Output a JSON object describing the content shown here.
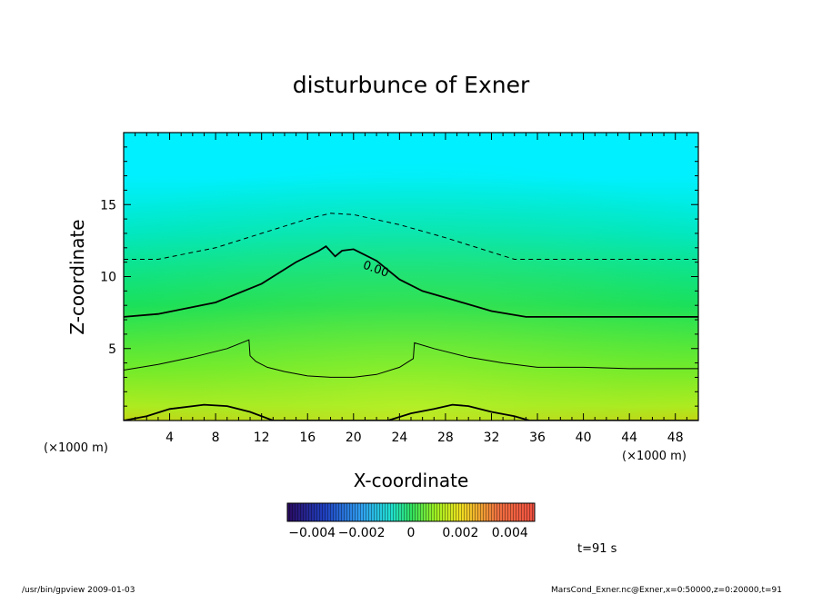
{
  "chart_data": {
    "type": "heatmap",
    "title": "disturbunce of Exner",
    "xlabel": "X-coordinate",
    "ylabel": "Z-coordinate",
    "x_unit": "(×1000 m)",
    "y_unit": "(×1000 m)",
    "xlim": [
      0,
      50
    ],
    "ylim": [
      0,
      20
    ],
    "x_ticks": [
      4,
      8,
      12,
      16,
      20,
      24,
      28,
      32,
      36,
      40,
      44,
      48
    ],
    "x_tick_labels": [
      "4",
      "8",
      "12",
      "16",
      "20",
      "24",
      "28",
      "32",
      "36",
      "40",
      "44",
      "48"
    ],
    "y_ticks": [
      5,
      10,
      15
    ],
    "y_tick_labels": [
      "5",
      "10",
      "15"
    ],
    "colorbar": {
      "range": [
        -0.005,
        0.005
      ],
      "tick_values": [
        -0.004,
        -0.002,
        0,
        0.002,
        0.004
      ],
      "tick_labels": [
        "−0.004",
        "−0.002",
        "0",
        "0.002",
        "0.004"
      ]
    },
    "contours": [
      {
        "level": "upper-dashed",
        "style": "dashed",
        "points": [
          [
            0,
            11.2
          ],
          [
            3,
            11.2
          ],
          [
            8,
            12
          ],
          [
            12,
            13
          ],
          [
            16,
            14
          ],
          [
            18,
            14.4
          ],
          [
            20,
            14.3
          ],
          [
            24,
            13.6
          ],
          [
            28,
            12.7
          ],
          [
            32,
            11.7
          ],
          [
            34,
            11.2
          ],
          [
            50,
            11.2
          ]
        ]
      },
      {
        "level": "0.00",
        "label": "0.00",
        "style": "thick",
        "points": [
          [
            0,
            7.2
          ],
          [
            3,
            7.4
          ],
          [
            8,
            8.2
          ],
          [
            12,
            9.5
          ],
          [
            15,
            11
          ],
          [
            17,
            11.8
          ],
          [
            17.6,
            12.1
          ],
          [
            18.4,
            11.4
          ],
          [
            19,
            11.8
          ],
          [
            20,
            11.9
          ],
          [
            22,
            11.1
          ],
          [
            24,
            9.8
          ],
          [
            26,
            9
          ],
          [
            29,
            8.3
          ],
          [
            32,
            7.6
          ],
          [
            35,
            7.2
          ],
          [
            50,
            7.2
          ]
        ]
      },
      {
        "level": "mid",
        "style": "thin",
        "points": [
          [
            0,
            3.5
          ],
          [
            3,
            3.9
          ],
          [
            6,
            4.4
          ],
          [
            9,
            5
          ],
          [
            10.9,
            5.6
          ],
          [
            11,
            4.5
          ],
          [
            11.5,
            4.1
          ],
          [
            12.5,
            3.7
          ],
          [
            14,
            3.4
          ],
          [
            16,
            3.1
          ],
          [
            18,
            3.0
          ],
          [
            20,
            3.0
          ],
          [
            22,
            3.2
          ],
          [
            24,
            3.7
          ],
          [
            25.2,
            4.3
          ],
          [
            25.3,
            5.4
          ],
          [
            27,
            5
          ],
          [
            30,
            4.4
          ],
          [
            33,
            4.0
          ],
          [
            36,
            3.7
          ],
          [
            40,
            3.7
          ],
          [
            44,
            3.6
          ],
          [
            48,
            3.6
          ],
          [
            50,
            3.6
          ]
        ]
      },
      {
        "level": "bottom",
        "style": "thick",
        "points": [
          [
            0,
            0
          ],
          [
            2,
            0.3
          ],
          [
            4,
            0.8
          ],
          [
            7,
            1.1
          ],
          [
            9,
            1.0
          ],
          [
            11,
            0.6
          ],
          [
            13,
            0
          ],
          [
            23,
            0
          ],
          [
            25,
            0.5
          ],
          [
            27,
            0.8
          ],
          [
            28.6,
            1.1
          ],
          [
            30,
            1.0
          ],
          [
            32,
            0.6
          ],
          [
            34,
            0.3
          ],
          [
            35.3,
            0
          ],
          [
            50,
            0
          ]
        ]
      }
    ],
    "annotation": "t=91 s"
  },
  "footer": {
    "left": "/usr/bin/gpview  2009-01-03",
    "right": "MarsCond_Exner.nc@Exner,x=0:50000,z=0:20000,t=91"
  },
  "colors": {
    "top": "#00f0ff",
    "upper_mid": "#00e8c8",
    "mid": "#10e060",
    "lower_mid": "#80f020",
    "near_bottom": "#d8f010",
    "bottom": "#f8d000"
  }
}
